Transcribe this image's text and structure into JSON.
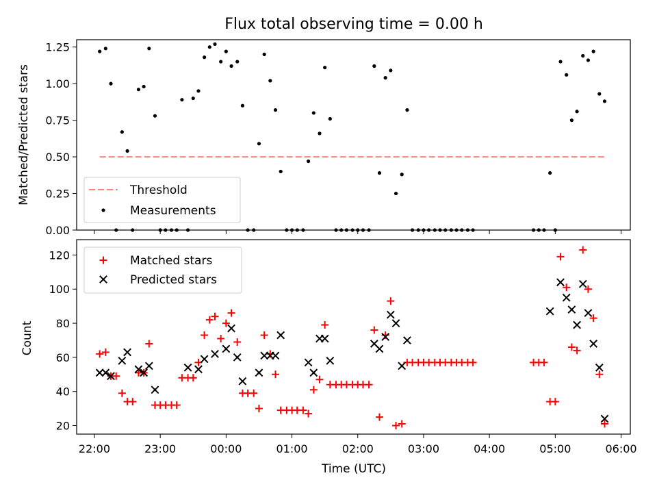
{
  "figure": {
    "title": "Flux total observing time = 0.00 h"
  },
  "chart_data": [
    {
      "type": "scatter",
      "ylabel": "Matched/Predicted stars",
      "xlim_hours": [
        21.73,
        30.14
      ],
      "ylim": [
        0,
        1.3
      ],
      "yticks": [
        "0.00",
        "0.25",
        "0.50",
        "0.75",
        "1.00",
        "1.25"
      ],
      "legend": {
        "placement": "lower-left",
        "entries": [
          "Threshold",
          "Measurements"
        ]
      },
      "threshold": {
        "name": "Threshold",
        "value": 0.5,
        "x_range_hours": [
          22.08,
          29.78
        ],
        "color": "#ff7f7f"
      },
      "measurements": {
        "name": "Measurements",
        "color": "#000000",
        "x_hours": [
          22.08,
          22.17,
          22.25,
          22.33,
          22.42,
          22.5,
          22.58,
          22.67,
          22.75,
          22.83,
          22.92,
          23.0,
          23.08,
          23.17,
          23.25,
          23.33,
          23.42,
          23.5,
          23.58,
          23.67,
          23.75,
          23.83,
          23.92,
          24.0,
          24.08,
          24.17,
          24.25,
          24.33,
          24.42,
          24.5,
          24.58,
          24.67,
          24.75,
          24.83,
          24.92,
          25.0,
          25.08,
          25.17,
          25.25,
          25.33,
          25.42,
          25.5,
          25.58,
          25.67,
          25.75,
          25.83,
          25.92,
          26.0,
          26.08,
          26.17,
          26.25,
          26.33,
          26.42,
          26.5,
          26.58,
          26.67,
          26.75,
          26.83,
          26.92,
          27.0,
          27.08,
          27.17,
          27.25,
          27.33,
          27.42,
          27.5,
          27.58,
          27.67,
          27.75,
          28.67,
          28.75,
          28.83,
          28.92,
          29.0,
          29.08,
          29.17,
          29.25,
          29.33,
          29.42,
          29.5,
          29.58,
          29.67,
          29.75
        ],
        "y": [
          1.22,
          1.24,
          1.0,
          0.0,
          0.67,
          0.54,
          0.0,
          0.96,
          0.98,
          1.24,
          0.78,
          0.0,
          0.0,
          0.0,
          0.0,
          0.89,
          0.0,
          0.9,
          0.95,
          1.18,
          1.25,
          1.27,
          1.15,
          1.22,
          1.12,
          1.15,
          0.85,
          0.0,
          0.0,
          0.59,
          1.2,
          1.02,
          0.82,
          0.4,
          0.0,
          0.0,
          0.0,
          0.0,
          0.47,
          0.8,
          0.66,
          1.11,
          0.76,
          0.0,
          0.0,
          0.0,
          0.0,
          0.0,
          0.0,
          0.0,
          1.12,
          0.39,
          1.04,
          1.09,
          0.25,
          0.38,
          0.82,
          0.0,
          0.0,
          0.0,
          0.0,
          0.0,
          0.0,
          0.0,
          0.0,
          0.0,
          0.0,
          0.0,
          0.0,
          0.0,
          0.0,
          0.0,
          0.39,
          0.0,
          1.15,
          1.06,
          0.75,
          0.81,
          1.19,
          1.16,
          1.22,
          0.93,
          0.88
        ]
      }
    },
    {
      "type": "scatter",
      "xlabel": "Time (UTC)",
      "ylabel": "Count",
      "xlim_hours": [
        21.73,
        30.14
      ],
      "ylim": [
        15,
        129
      ],
      "yticks": [
        "20",
        "40",
        "60",
        "80",
        "100",
        "120"
      ],
      "xticks": [
        {
          "hour": 22,
          "label": "22:00"
        },
        {
          "hour": 23,
          "label": "23:00"
        },
        {
          "hour": 24,
          "label": "00:00"
        },
        {
          "hour": 25,
          "label": "01:00"
        },
        {
          "hour": 26,
          "label": "02:00"
        },
        {
          "hour": 27,
          "label": "03:00"
        },
        {
          "hour": 28,
          "label": "04:00"
        },
        {
          "hour": 29,
          "label": "05:00"
        },
        {
          "hour": 30,
          "label": "06:00"
        }
      ],
      "legend": {
        "placement": "top-left",
        "entries": [
          "Matched stars",
          "Predicted stars"
        ]
      },
      "series": [
        {
          "name": "Matched stars",
          "marker": "+",
          "color": "#ff0000",
          "x_hours": [
            22.08,
            22.17,
            22.25,
            22.33,
            22.42,
            22.5,
            22.58,
            22.67,
            22.75,
            22.83,
            22.92,
            23.0,
            23.08,
            23.17,
            23.25,
            23.33,
            23.42,
            23.5,
            23.58,
            23.67,
            23.75,
            23.83,
            23.92,
            24.0,
            24.08,
            24.17,
            24.25,
            24.33,
            24.42,
            24.5,
            24.58,
            24.67,
            24.75,
            24.83,
            24.92,
            25.0,
            25.08,
            25.17,
            25.25,
            25.33,
            25.42,
            25.5,
            25.58,
            25.67,
            25.75,
            25.83,
            25.92,
            26.0,
            26.08,
            26.17,
            26.25,
            26.33,
            26.42,
            26.5,
            26.58,
            26.67,
            26.75,
            26.83,
            26.92,
            27.0,
            27.08,
            27.17,
            27.25,
            27.33,
            27.42,
            27.5,
            27.58,
            27.67,
            27.75,
            28.67,
            28.75,
            28.83,
            28.92,
            29.0,
            29.08,
            29.17,
            29.25,
            29.33,
            29.42,
            29.5,
            29.58,
            29.67,
            29.75
          ],
          "y": [
            62,
            63,
            49,
            49,
            39,
            34,
            34,
            51,
            51,
            68,
            32,
            32,
            32,
            32,
            32,
            48,
            48,
            48,
            57,
            73,
            82,
            84,
            71,
            80,
            86,
            69,
            39,
            39,
            39,
            30,
            73,
            62,
            50,
            29,
            29,
            29,
            29,
            29,
            27,
            41,
            47,
            79,
            44,
            44,
            44,
            44,
            44,
            44,
            44,
            44,
            76,
            25,
            73,
            93,
            20,
            21,
            57,
            57,
            57,
            57,
            57,
            57,
            57,
            57,
            57,
            57,
            57,
            57,
            57,
            57,
            57,
            57,
            34,
            34,
            119,
            101,
            66,
            64,
            123,
            100,
            83,
            50,
            21
          ]
        },
        {
          "name": "Predicted stars",
          "marker": "x",
          "color": "#000000",
          "x_hours": [
            22.08,
            22.17,
            22.25,
            22.42,
            22.5,
            22.67,
            22.75,
            22.83,
            22.92,
            23.42,
            23.58,
            23.67,
            23.83,
            24.0,
            24.08,
            24.17,
            24.25,
            24.5,
            24.58,
            24.67,
            24.75,
            24.83,
            25.25,
            25.33,
            25.42,
            25.5,
            25.58,
            26.25,
            26.33,
            26.42,
            26.5,
            26.58,
            26.67,
            26.75,
            28.92,
            29.08,
            29.17,
            29.25,
            29.33,
            29.42,
            29.5,
            29.58,
            29.67,
            29.75
          ],
          "y": [
            51,
            51,
            49,
            58,
            63,
            53,
            51,
            55,
            41,
            54,
            53,
            59,
            62,
            65,
            77,
            60,
            46,
            51,
            61,
            61,
            61,
            73,
            57,
            51,
            71,
            71,
            58,
            68,
            65,
            72,
            85,
            80,
            55,
            70,
            87,
            104,
            95,
            88,
            79,
            103,
            86,
            68,
            54,
            24
          ]
        }
      ]
    }
  ]
}
